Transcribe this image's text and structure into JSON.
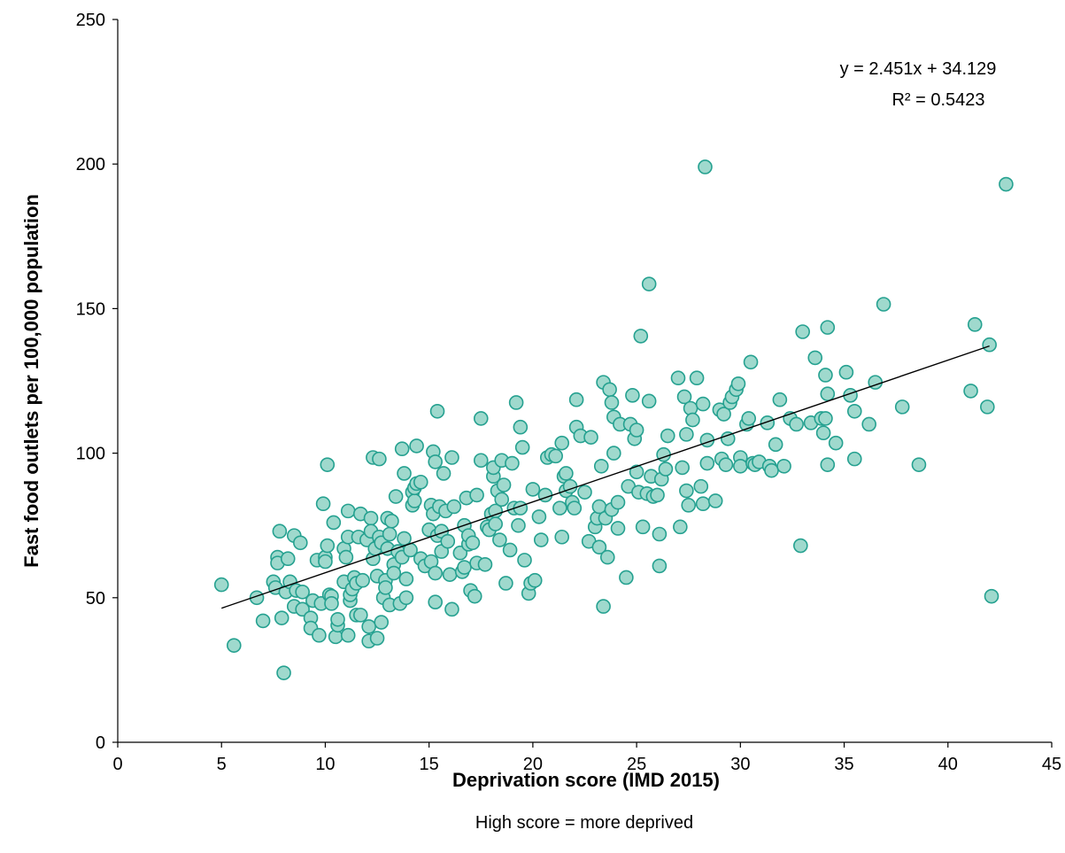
{
  "chart_data": {
    "type": "scatter",
    "title": "",
    "xlabel": "Deprivation score (IMD 2015)",
    "xsublabel": "High score = more deprived",
    "ylabel": "Fast food outlets per 100,000 population",
    "xlim": [
      0,
      45
    ],
    "ylim": [
      0,
      250
    ],
    "xticks": [
      0,
      5,
      10,
      15,
      20,
      25,
      30,
      35,
      40,
      45
    ],
    "yticks": [
      0,
      50,
      100,
      150,
      200,
      250
    ],
    "grid": false,
    "legend": "none",
    "marker_fill": "#9fd9cd",
    "marker_stroke": "#25a190",
    "trendline": {
      "slope": 2.451,
      "intercept": 34.129,
      "x_range": [
        5,
        42
      ],
      "color": "#000000",
      "equation_label": "y = 2.451x + 34.129",
      "r2_label": "R² = 0.5423"
    },
    "points": [
      [
        5,
        54.5
      ],
      [
        5.6,
        33.5
      ],
      [
        6.7,
        50
      ],
      [
        7.0,
        42
      ],
      [
        7.5,
        55.5
      ],
      [
        7.6,
        53.5
      ],
      [
        7.7,
        64
      ],
      [
        7.7,
        62
      ],
      [
        7.8,
        73
      ],
      [
        7.9,
        43
      ],
      [
        8.0,
        24
      ],
      [
        8.1,
        52
      ],
      [
        8.2,
        63.5
      ],
      [
        8.3,
        55.5
      ],
      [
        8.5,
        47
      ],
      [
        8.5,
        71.5
      ],
      [
        8.6,
        52.5
      ],
      [
        8.8,
        69
      ],
      [
        8.9,
        46
      ],
      [
        8.9,
        52
      ],
      [
        9.3,
        43
      ],
      [
        9.3,
        39.5
      ],
      [
        9.4,
        49
      ],
      [
        9.6,
        63
      ],
      [
        9.7,
        37
      ],
      [
        9.8,
        48
      ],
      [
        9.9,
        82.5
      ],
      [
        10.0,
        64
      ],
      [
        10.0,
        62.5
      ],
      [
        10.1,
        68
      ],
      [
        10.1,
        96
      ],
      [
        10.2,
        51
      ],
      [
        10.3,
        50.5
      ],
      [
        10.3,
        48
      ],
      [
        10.4,
        76
      ],
      [
        10.5,
        36.5
      ],
      [
        10.6,
        40.5
      ],
      [
        10.6,
        42.5
      ],
      [
        10.9,
        55.5
      ],
      [
        10.9,
        67
      ],
      [
        11.0,
        64
      ],
      [
        11.1,
        71
      ],
      [
        11.1,
        80
      ],
      [
        11.1,
        37
      ],
      [
        11.2,
        49
      ],
      [
        11.2,
        51
      ],
      [
        11.3,
        53
      ],
      [
        11.4,
        57
      ],
      [
        11.5,
        44
      ],
      [
        11.5,
        55
      ],
      [
        11.6,
        71
      ],
      [
        11.7,
        44
      ],
      [
        11.7,
        79
      ],
      [
        11.8,
        56
      ],
      [
        12.0,
        70
      ],
      [
        12.1,
        35
      ],
      [
        12.1,
        40
      ],
      [
        12.2,
        77.5
      ],
      [
        12.2,
        73
      ],
      [
        12.3,
        98.5
      ],
      [
        12.3,
        63.5
      ],
      [
        12.4,
        67
      ],
      [
        12.5,
        57.5
      ],
      [
        12.5,
        36
      ],
      [
        12.6,
        98
      ],
      [
        12.6,
        71
      ],
      [
        12.7,
        69
      ],
      [
        12.7,
        41.5
      ],
      [
        12.8,
        50
      ],
      [
        12.9,
        56
      ],
      [
        12.9,
        53.5
      ],
      [
        13.0,
        77.5
      ],
      [
        13.0,
        67
      ],
      [
        13.1,
        47.5
      ],
      [
        13.1,
        72
      ],
      [
        13.2,
        76.5
      ],
      [
        13.3,
        61.5
      ],
      [
        13.3,
        58.5
      ],
      [
        13.4,
        85
      ],
      [
        13.5,
        66
      ],
      [
        13.6,
        48
      ],
      [
        13.7,
        64
      ],
      [
        13.7,
        101.5
      ],
      [
        13.8,
        93
      ],
      [
        13.8,
        70.5
      ],
      [
        13.9,
        56.5
      ],
      [
        13.9,
        50
      ],
      [
        14.1,
        66.5
      ],
      [
        14.2,
        86.5
      ],
      [
        14.2,
        82
      ],
      [
        14.3,
        83.5
      ],
      [
        14.3,
        88
      ],
      [
        14.4,
        89.5
      ],
      [
        14.4,
        102.5
      ],
      [
        14.6,
        90
      ],
      [
        14.6,
        63.5
      ],
      [
        14.8,
        61
      ],
      [
        15.0,
        73.5
      ],
      [
        15.1,
        82
      ],
      [
        15.1,
        62.5
      ],
      [
        15.2,
        100.5
      ],
      [
        15.2,
        79
      ],
      [
        15.3,
        97
      ],
      [
        15.3,
        58.5
      ],
      [
        15.3,
        48.5
      ],
      [
        15.4,
        71.5
      ],
      [
        15.4,
        114.5
      ],
      [
        15.5,
        81.5
      ],
      [
        15.6,
        66
      ],
      [
        15.6,
        73
      ],
      [
        15.7,
        93
      ],
      [
        15.8,
        80
      ],
      [
        15.9,
        69.5
      ],
      [
        16.0,
        58
      ],
      [
        16.1,
        46
      ],
      [
        16.1,
        98.5
      ],
      [
        16.2,
        81.5
      ],
      [
        16.5,
        65.5
      ],
      [
        16.6,
        59
      ],
      [
        16.7,
        60.5
      ],
      [
        16.7,
        75
      ],
      [
        16.8,
        84.5
      ],
      [
        16.9,
        68.5
      ],
      [
        16.9,
        71.5
      ],
      [
        17.0,
        52.5
      ],
      [
        17.1,
        69
      ],
      [
        17.2,
        50.5
      ],
      [
        17.3,
        62
      ],
      [
        17.3,
        85.5
      ],
      [
        17.5,
        97.5
      ],
      [
        17.5,
        112
      ],
      [
        17.7,
        61.5
      ],
      [
        17.8,
        74.5
      ],
      [
        17.9,
        73.5
      ],
      [
        18.0,
        79
      ],
      [
        18.1,
        92
      ],
      [
        18.1,
        95
      ],
      [
        18.2,
        80
      ],
      [
        18.2,
        75.5
      ],
      [
        18.3,
        87
      ],
      [
        18.4,
        70
      ],
      [
        18.5,
        84
      ],
      [
        18.5,
        97.5
      ],
      [
        18.6,
        89
      ],
      [
        18.7,
        55
      ],
      [
        18.9,
        66.5
      ],
      [
        19.0,
        96.5
      ],
      [
        19.1,
        81
      ],
      [
        19.2,
        117.5
      ],
      [
        19.3,
        75
      ],
      [
        19.4,
        81
      ],
      [
        19.4,
        109
      ],
      [
        19.5,
        102
      ],
      [
        19.6,
        63
      ],
      [
        19.8,
        51.5
      ],
      [
        19.9,
        55
      ],
      [
        20.0,
        87.5
      ],
      [
        20.1,
        56
      ],
      [
        20.3,
        78
      ],
      [
        20.4,
        70
      ],
      [
        20.6,
        85.5
      ],
      [
        20.7,
        98.5
      ],
      [
        20.9,
        99.5
      ],
      [
        21.1,
        99
      ],
      [
        21.3,
        81
      ],
      [
        21.4,
        71
      ],
      [
        21.4,
        103.5
      ],
      [
        21.5,
        92
      ],
      [
        21.6,
        87
      ],
      [
        21.6,
        93
      ],
      [
        21.8,
        88.5
      ],
      [
        21.9,
        83
      ],
      [
        22.0,
        81
      ],
      [
        22.1,
        118.5
      ],
      [
        22.1,
        109
      ],
      [
        22.3,
        106
      ],
      [
        22.5,
        86.5
      ],
      [
        22.7,
        69.5
      ],
      [
        22.8,
        105.5
      ],
      [
        23.0,
        74.5
      ],
      [
        23.1,
        77.5
      ],
      [
        23.2,
        67.5
      ],
      [
        23.2,
        81.5
      ],
      [
        23.3,
        95.5
      ],
      [
        23.4,
        124.5
      ],
      [
        23.4,
        47
      ],
      [
        23.5,
        77.5
      ],
      [
        23.6,
        64
      ],
      [
        23.7,
        122
      ],
      [
        23.8,
        80.5
      ],
      [
        23.8,
        117.5
      ],
      [
        23.9,
        112.5
      ],
      [
        23.9,
        100
      ],
      [
        24.1,
        74
      ],
      [
        24.1,
        83
      ],
      [
        24.2,
        110
      ],
      [
        24.5,
        57
      ],
      [
        24.6,
        88.5
      ],
      [
        24.7,
        110
      ],
      [
        24.8,
        120
      ],
      [
        24.9,
        105
      ],
      [
        25.0,
        93.5
      ],
      [
        25.0,
        108
      ],
      [
        25.1,
        86.5
      ],
      [
        25.2,
        140.5
      ],
      [
        25.3,
        74.5
      ],
      [
        25.5,
        86
      ],
      [
        25.6,
        158.5
      ],
      [
        25.6,
        118
      ],
      [
        25.7,
        92
      ],
      [
        25.8,
        85
      ],
      [
        26.0,
        85.5
      ],
      [
        26.1,
        72
      ],
      [
        26.1,
        61
      ],
      [
        26.2,
        91
      ],
      [
        26.3,
        99.5
      ],
      [
        26.4,
        94.5
      ],
      [
        26.5,
        106
      ],
      [
        27.0,
        126
      ],
      [
        27.1,
        74.5
      ],
      [
        27.2,
        95
      ],
      [
        27.3,
        119.5
      ],
      [
        27.4,
        106.5
      ],
      [
        27.4,
        87
      ],
      [
        27.5,
        82
      ],
      [
        27.6,
        115.5
      ],
      [
        27.7,
        111.5
      ],
      [
        27.9,
        126
      ],
      [
        28.1,
        88.5
      ],
      [
        28.2,
        117
      ],
      [
        28.2,
        82.5
      ],
      [
        28.3,
        199
      ],
      [
        28.4,
        96.5
      ],
      [
        28.4,
        104.5
      ],
      [
        28.8,
        83.5
      ],
      [
        29.0,
        115
      ],
      [
        29.1,
        98
      ],
      [
        29.2,
        113.5
      ],
      [
        29.3,
        96
      ],
      [
        29.4,
        105
      ],
      [
        29.5,
        117.5
      ],
      [
        29.6,
        119.5
      ],
      [
        29.8,
        122
      ],
      [
        29.9,
        124
      ],
      [
        30.0,
        98.5
      ],
      [
        30.0,
        95.5
      ],
      [
        30.3,
        110
      ],
      [
        30.4,
        112
      ],
      [
        30.5,
        131.5
      ],
      [
        30.6,
        96.5
      ],
      [
        30.7,
        96
      ],
      [
        30.9,
        97
      ],
      [
        31.3,
        110.5
      ],
      [
        31.4,
        95.5
      ],
      [
        31.5,
        94
      ],
      [
        31.7,
        103
      ],
      [
        31.9,
        118.5
      ],
      [
        32.1,
        95.5
      ],
      [
        32.4,
        112
      ],
      [
        32.7,
        110
      ],
      [
        32.9,
        68
      ],
      [
        33.0,
        142
      ],
      [
        33.4,
        110.5
      ],
      [
        33.6,
        133
      ],
      [
        33.9,
        112
      ],
      [
        34.0,
        107
      ],
      [
        34.1,
        112
      ],
      [
        34.1,
        127
      ],
      [
        34.2,
        120.5
      ],
      [
        34.2,
        143.5
      ],
      [
        34.2,
        96
      ],
      [
        34.6,
        103.5
      ],
      [
        35.1,
        128
      ],
      [
        35.3,
        120
      ],
      [
        35.5,
        114.5
      ],
      [
        35.5,
        98
      ],
      [
        36.2,
        110
      ],
      [
        36.5,
        124.5
      ],
      [
        36.9,
        151.5
      ],
      [
        37.8,
        116
      ],
      [
        38.6,
        96
      ],
      [
        41.1,
        121.5
      ],
      [
        41.3,
        144.5
      ],
      [
        41.9,
        116
      ],
      [
        42.0,
        137.5
      ],
      [
        42.1,
        50.5
      ],
      [
        42.8,
        193
      ]
    ]
  }
}
